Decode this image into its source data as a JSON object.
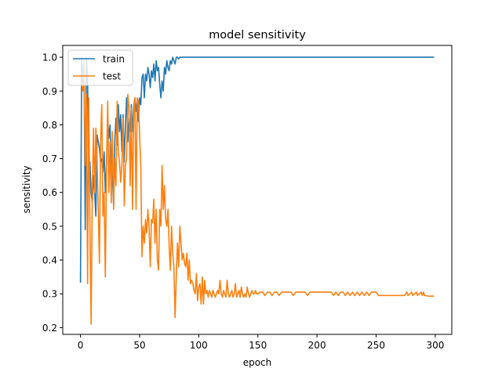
{
  "chart_data": {
    "type": "line",
    "title": "model sensitivity",
    "xlabel": "epoch",
    "ylabel": "sensitivity",
    "xlim": [
      -15,
      314
    ],
    "ylim": [
      0.18,
      1.035
    ],
    "grid": false,
    "legend_position": "top-left",
    "x_ticks": [
      0,
      50,
      100,
      150,
      200,
      250,
      300
    ],
    "y_ticks": [
      0.2,
      0.3,
      0.4,
      0.5,
      0.6,
      0.7,
      0.8,
      0.9,
      1.0
    ],
    "x_tick_labels": [
      "0",
      "50",
      "100",
      "150",
      "200",
      "250",
      "300"
    ],
    "y_tick_labels": [
      "0.2",
      "0.3",
      "0.4",
      "0.5",
      "0.6",
      "0.7",
      "0.8",
      "0.9",
      "1.0"
    ],
    "series": [
      {
        "name": "train",
        "color": "#1f77b4",
        "points": [
          [
            0,
            0.333
          ],
          [
            1,
            1.0
          ],
          [
            2,
            0.92
          ],
          [
            3,
            0.97
          ],
          [
            4,
            0.49
          ],
          [
            5,
            1.0
          ],
          [
            6,
            0.93
          ],
          [
            7,
            0.63
          ],
          [
            8,
            0.69
          ],
          [
            9,
            0.6
          ],
          [
            10,
            0.57
          ],
          [
            11,
            0.65
          ],
          [
            12,
            0.6
          ],
          [
            13,
            0.53
          ],
          [
            14,
            0.77
          ],
          [
            15,
            0.75
          ],
          [
            16,
            0.73
          ],
          [
            17,
            0.69
          ],
          [
            18,
            0.7
          ],
          [
            19,
            0.66
          ],
          [
            20,
            0.72
          ],
          [
            21,
            0.6
          ],
          [
            22,
            0.68
          ],
          [
            23,
            0.82
          ],
          [
            24,
            0.76
          ],
          [
            25,
            0.8
          ],
          [
            26,
            0.68
          ],
          [
            27,
            0.65
          ],
          [
            28,
            0.56
          ],
          [
            29,
            0.75
          ],
          [
            30,
            0.82
          ],
          [
            31,
            0.74
          ],
          [
            32,
            0.86
          ],
          [
            33,
            0.78
          ],
          [
            34,
            0.83
          ],
          [
            35,
            0.72
          ],
          [
            36,
            0.83
          ],
          [
            37,
            0.69
          ],
          [
            38,
            0.8
          ],
          [
            39,
            0.88
          ],
          [
            40,
            0.75
          ],
          [
            41,
            0.82
          ],
          [
            42,
            0.78
          ],
          [
            43,
            0.86
          ],
          [
            44,
            0.78
          ],
          [
            45,
            0.85
          ],
          [
            46,
            0.88
          ],
          [
            47,
            0.84
          ],
          [
            48,
            0.87
          ],
          [
            49,
            0.81
          ],
          [
            50,
            0.88
          ],
          [
            51,
            0.86
          ],
          [
            52,
            0.94
          ],
          [
            53,
            0.95
          ],
          [
            54,
            0.88
          ],
          [
            55,
            0.95
          ],
          [
            56,
            0.93
          ],
          [
            57,
            0.97
          ],
          [
            58,
            0.95
          ],
          [
            59,
            0.91
          ],
          [
            60,
            0.96
          ],
          [
            61,
            0.94
          ],
          [
            62,
            0.98
          ],
          [
            63,
            0.93
          ],
          [
            64,
            0.99
          ],
          [
            65,
            0.96
          ],
          [
            66,
            0.97
          ],
          [
            67,
            0.92
          ],
          [
            68,
            0.88
          ],
          [
            69,
            0.93
          ],
          [
            70,
            0.9
          ],
          [
            71,
            0.97
          ],
          [
            72,
            0.95
          ],
          [
            73,
            0.99
          ],
          [
            74,
            0.97
          ],
          [
            75,
            0.96
          ],
          [
            76,
            0.99
          ],
          [
            77,
            0.98
          ],
          [
            78,
            1.0
          ],
          [
            79,
            0.99
          ],
          [
            80,
            0.98
          ],
          [
            81,
            1.0
          ],
          [
            82,
            1.0
          ],
          [
            83,
            0.995
          ],
          [
            84,
            1.0
          ],
          [
            90,
            1.0
          ],
          [
            100,
            1.0
          ],
          [
            150,
            1.0
          ],
          [
            200,
            1.0
          ],
          [
            250,
            1.0
          ],
          [
            299,
            1.0
          ]
        ]
      },
      {
        "name": "test",
        "color": "#ff7f0e",
        "points": [
          [
            1,
            0.92
          ],
          [
            2,
            0.9
          ],
          [
            3,
            0.99
          ],
          [
            4,
            0.68
          ],
          [
            5,
            0.89
          ],
          [
            6,
            0.33
          ],
          [
            7,
            0.88
          ],
          [
            8,
            0.5
          ],
          [
            9,
            0.21
          ],
          [
            10,
            0.6
          ],
          [
            11,
            0.79
          ],
          [
            12,
            0.6
          ],
          [
            13,
            0.79
          ],
          [
            14,
            0.7
          ],
          [
            15,
            0.55
          ],
          [
            16,
            0.39
          ],
          [
            17,
            0.75
          ],
          [
            18,
            0.86
          ],
          [
            19,
            0.53
          ],
          [
            20,
            0.6
          ],
          [
            21,
            0.35
          ],
          [
            22,
            0.67
          ],
          [
            23,
            0.87
          ],
          [
            24,
            0.6
          ],
          [
            25,
            0.75
          ],
          [
            26,
            0.57
          ],
          [
            27,
            0.78
          ],
          [
            28,
            0.55
          ],
          [
            29,
            0.7
          ],
          [
            30,
            0.62
          ],
          [
            31,
            0.87
          ],
          [
            32,
            0.72
          ],
          [
            33,
            0.69
          ],
          [
            34,
            0.63
          ],
          [
            35,
            0.68
          ],
          [
            36,
            0.82
          ],
          [
            37,
            0.56
          ],
          [
            38,
            0.68
          ],
          [
            39,
            0.7
          ],
          [
            40,
            0.89
          ],
          [
            41,
            0.85
          ],
          [
            42,
            0.62
          ],
          [
            43,
            0.85
          ],
          [
            44,
            0.55
          ],
          [
            45,
            0.83
          ],
          [
            46,
            0.88
          ],
          [
            47,
            0.55
          ],
          [
            48,
            0.88
          ],
          [
            49,
            0.87
          ],
          [
            50,
            0.77
          ],
          [
            51,
            0.68
          ],
          [
            52,
            0.41
          ],
          [
            53,
            0.5
          ],
          [
            54,
            0.45
          ],
          [
            55,
            0.52
          ],
          [
            56,
            0.48
          ],
          [
            57,
            0.55
          ],
          [
            58,
            0.5
          ],
          [
            59,
            0.38
          ],
          [
            60,
            0.52
          ],
          [
            61,
            0.51
          ],
          [
            62,
            0.58
          ],
          [
            63,
            0.45
          ],
          [
            64,
            0.55
          ],
          [
            65,
            0.4
          ],
          [
            66,
            0.37
          ],
          [
            67,
            0.55
          ],
          [
            68,
            0.5
          ],
          [
            69,
            0.68
          ],
          [
            70,
            0.55
          ],
          [
            71,
            0.62
          ],
          [
            72,
            0.52
          ],
          [
            73,
            0.5
          ],
          [
            74,
            0.55
          ],
          [
            75,
            0.44
          ],
          [
            76,
            0.37
          ],
          [
            77,
            0.5
          ],
          [
            78,
            0.42
          ],
          [
            79,
            0.38
          ],
          [
            80,
            0.23
          ],
          [
            81,
            0.35
          ],
          [
            82,
            0.45
          ],
          [
            83,
            0.38
          ],
          [
            84,
            0.5
          ],
          [
            85,
            0.45
          ],
          [
            86,
            0.4
          ],
          [
            87,
            0.42
          ],
          [
            88,
            0.39
          ],
          [
            89,
            0.38
          ],
          [
            90,
            0.42
          ],
          [
            91,
            0.34
          ],
          [
            92,
            0.4
          ],
          [
            93,
            0.33
          ],
          [
            94,
            0.34
          ],
          [
            95,
            0.33
          ],
          [
            96,
            0.31
          ],
          [
            97,
            0.3
          ],
          [
            98,
            0.36
          ],
          [
            99,
            0.28
          ],
          [
            100,
            0.32
          ],
          [
            101,
            0.33
          ],
          [
            102,
            0.27
          ],
          [
            103,
            0.35
          ],
          [
            104,
            0.27
          ],
          [
            105,
            0.34
          ],
          [
            106,
            0.3
          ],
          [
            107,
            0.31
          ],
          [
            108,
            0.29
          ],
          [
            109,
            0.31
          ],
          [
            110,
            0.3
          ],
          [
            111,
            0.29
          ],
          [
            112,
            0.31
          ],
          [
            113,
            0.3
          ],
          [
            114,
            0.29
          ],
          [
            115,
            0.3
          ],
          [
            116,
            0.31
          ],
          [
            117,
            0.3
          ],
          [
            118,
            0.34
          ],
          [
            119,
            0.3
          ],
          [
            120,
            0.29
          ],
          [
            121,
            0.31
          ],
          [
            122,
            0.3
          ],
          [
            123,
            0.29
          ],
          [
            124,
            0.34
          ],
          [
            125,
            0.3
          ],
          [
            126,
            0.29
          ],
          [
            127,
            0.3
          ],
          [
            128,
            0.31
          ],
          [
            129,
            0.29
          ],
          [
            130,
            0.3
          ],
          [
            131,
            0.33
          ],
          [
            132,
            0.29
          ],
          [
            133,
            0.3
          ],
          [
            134,
            0.31
          ],
          [
            135,
            0.29
          ],
          [
            136,
            0.32
          ],
          [
            137,
            0.3
          ],
          [
            138,
            0.29
          ],
          [
            139,
            0.3
          ],
          [
            140,
            0.29
          ],
          [
            141,
            0.32
          ],
          [
            142,
            0.3
          ],
          [
            143,
            0.29
          ],
          [
            144,
            0.3
          ],
          [
            145,
            0.31
          ],
          [
            146,
            0.3
          ],
          [
            147,
            0.3
          ],
          [
            148,
            0.31
          ],
          [
            149,
            0.3
          ],
          [
            150,
            0.3
          ],
          [
            152,
            0.305
          ],
          [
            154,
            0.305
          ],
          [
            156,
            0.295
          ],
          [
            158,
            0.305
          ],
          [
            160,
            0.305
          ],
          [
            162,
            0.295
          ],
          [
            164,
            0.305
          ],
          [
            166,
            0.305
          ],
          [
            168,
            0.295
          ],
          [
            170,
            0.305
          ],
          [
            172,
            0.305
          ],
          [
            174,
            0.305
          ],
          [
            176,
            0.305
          ],
          [
            178,
            0.305
          ],
          [
            180,
            0.295
          ],
          [
            182,
            0.305
          ],
          [
            184,
            0.305
          ],
          [
            186,
            0.305
          ],
          [
            188,
            0.305
          ],
          [
            190,
            0.305
          ],
          [
            192,
            0.295
          ],
          [
            194,
            0.305
          ],
          [
            196,
            0.305
          ],
          [
            198,
            0.305
          ],
          [
            200,
            0.305
          ],
          [
            202,
            0.305
          ],
          [
            204,
            0.305
          ],
          [
            206,
            0.305
          ],
          [
            208,
            0.305
          ],
          [
            210,
            0.305
          ],
          [
            212,
            0.305
          ],
          [
            214,
            0.295
          ],
          [
            216,
            0.305
          ],
          [
            218,
            0.295
          ],
          [
            220,
            0.305
          ],
          [
            222,
            0.305
          ],
          [
            224,
            0.295
          ],
          [
            226,
            0.305
          ],
          [
            228,
            0.295
          ],
          [
            230,
            0.305
          ],
          [
            232,
            0.295
          ],
          [
            234,
            0.305
          ],
          [
            236,
            0.295
          ],
          [
            238,
            0.305
          ],
          [
            240,
            0.295
          ],
          [
            242,
            0.305
          ],
          [
            244,
            0.295
          ],
          [
            246,
            0.305
          ],
          [
            248,
            0.305
          ],
          [
            250,
            0.305
          ],
          [
            252,
            0.295
          ],
          [
            254,
            0.295
          ],
          [
            256,
            0.295
          ],
          [
            258,
            0.295
          ],
          [
            260,
            0.295
          ],
          [
            262,
            0.295
          ],
          [
            264,
            0.295
          ],
          [
            266,
            0.295
          ],
          [
            268,
            0.295
          ],
          [
            270,
            0.295
          ],
          [
            272,
            0.295
          ],
          [
            274,
            0.295
          ],
          [
            276,
            0.305
          ],
          [
            277,
            0.295
          ],
          [
            280,
            0.305
          ],
          [
            281,
            0.295
          ],
          [
            284,
            0.305
          ],
          [
            285,
            0.295
          ],
          [
            288,
            0.305
          ],
          [
            289,
            0.295
          ],
          [
            290,
            0.305
          ],
          [
            291,
            0.295
          ],
          [
            295,
            0.293
          ],
          [
            299,
            0.293
          ]
        ]
      }
    ]
  }
}
